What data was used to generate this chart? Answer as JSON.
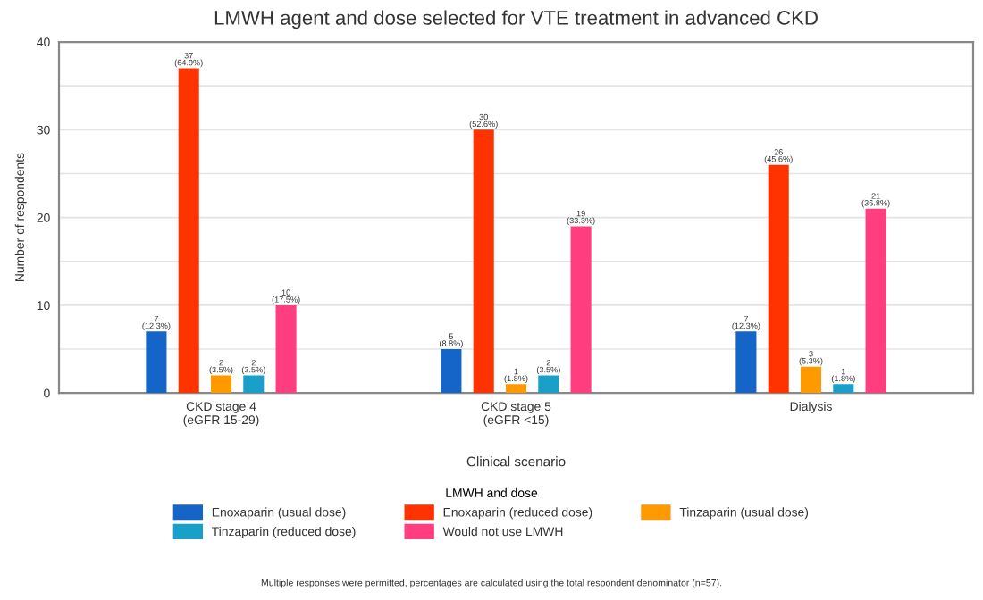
{
  "chart_data": {
    "type": "bar",
    "title": "LMWH agent and dose selected for VTE treatment in advanced CKD",
    "categories": [
      "CKD stage 4\n(eGFR 15-29)",
      "CKD stage 5\n(eGFR <15)",
      "Dialysis"
    ],
    "xlabel": "Clinical scenario",
    "ylabel": "Number of respondents",
    "legend_title": "LMWH and dose",
    "series": [
      {
        "name": "Enoxaparin (usual dose)",
        "color": "#1565c8",
        "values": [
          7,
          5,
          7
        ],
        "value_labels": [
          "7\n(12.3%)",
          "5\n(8.8%)",
          "7\n(12.3%)"
        ]
      },
      {
        "name": "Enoxaparin (reduced dose)",
        "color": "#ff3300",
        "values": [
          37,
          30,
          26
        ],
        "value_labels": [
          "37\n(64.9%)",
          "30\n(52.6%)",
          "26\n(45.6%)"
        ]
      },
      {
        "name": "Tinzaparin (usual dose)",
        "color": "#ff9900",
        "values": [
          2,
          1,
          3
        ],
        "value_labels": [
          "2\n(3.5%)",
          "1\n(1.8%)",
          "3\n(5.3%)"
        ]
      },
      {
        "name": "Tinzaparin (reduced dose)",
        "color": "#1a9fc9",
        "values": [
          2,
          2,
          1
        ],
        "value_labels": [
          "2\n(3.5%)",
          "2\n(3.5%)",
          "1\n(1.8%)"
        ]
      },
      {
        "name": "Would not use LMWH",
        "color": "#ff3d7f",
        "values": [
          10,
          19,
          21
        ],
        "value_labels": [
          "10\n(17.5%)",
          "19\n(33.3%)",
          "21\n(36.8%)"
        ]
      }
    ],
    "ylim": [
      0,
      40
    ],
    "yticks": [
      0,
      {
        "value": 5,
        "label": null
      },
      10,
      {
        "value": 15,
        "label": null
      },
      20,
      {
        "value": 25,
        "label": null
      },
      30,
      {
        "value": 35,
        "label": null
      },
      40
    ],
    "grid": "y",
    "legend": "bottom",
    "annotations": [
      "Multiple responses were permitted, percentages are calculated using the total respondent denominator (n=57)."
    ]
  }
}
